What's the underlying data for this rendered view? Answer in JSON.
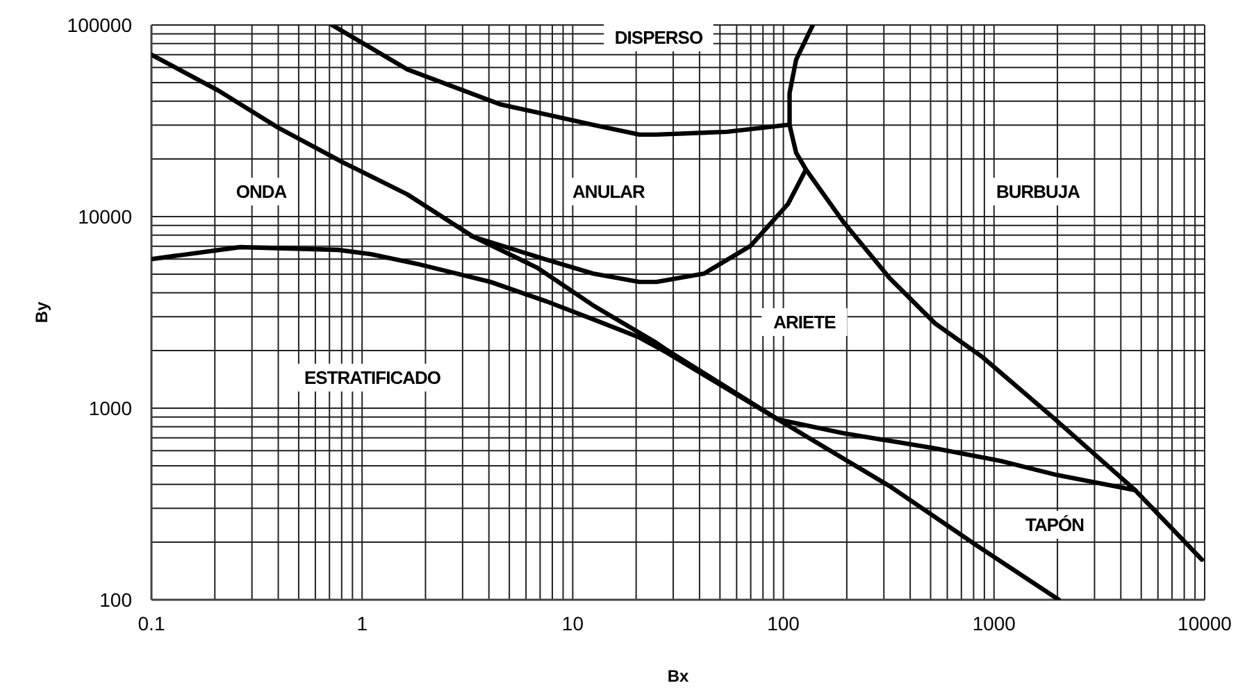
{
  "chart_data": {
    "type": "line",
    "xlabel": "Bx",
    "ylabel": "By",
    "log": "xy",
    "grid": true,
    "marker": "none",
    "line_style": "solid",
    "xlim": [
      0.1,
      10000
    ],
    "ylim": [
      100,
      100000
    ],
    "xticks": [
      0.1,
      1,
      10,
      100,
      1000,
      10000
    ],
    "yticks": [
      100,
      1000,
      10000,
      100000
    ],
    "series": [
      {
        "color": "#000000",
        "x": [
          0.1,
          0.207,
          0.4,
          0.81,
          1.64,
          3.34,
          6.8,
          12.5,
          25,
          28,
          94,
          318,
          828,
          2030
        ],
        "values": [
          70000,
          45600,
          29100,
          19200,
          13060,
          7900,
          5400,
          3440,
          2190,
          2010,
          875,
          393,
          192,
          100
        ]
      },
      {
        "color": "#000000",
        "x": [
          0.1,
          0.264,
          0.77,
          1.1,
          1.82,
          4.07,
          7.5,
          12.5,
          20.7,
          28,
          94,
          193,
          525,
          1070,
          1970,
          4680
        ],
        "values": [
          6000,
          6930,
          6700,
          6370,
          5670,
          4560,
          3610,
          2910,
          2340,
          1950,
          875,
          740,
          617,
          531,
          449,
          373
        ]
      },
      {
        "color": "#000000",
        "x": [
          0.72,
          1.64,
          4.5,
          12.5,
          20.7,
          25,
          54,
          105
        ],
        "values": [
          100000,
          58600,
          38600,
          30100,
          26800,
          26800,
          27700,
          30100
        ]
      },
      {
        "color": "#000000",
        "x": [
          138,
          115,
          107,
          107,
          115,
          128,
          193,
          318,
          525,
          880,
          1880,
          4680,
          9700
        ],
        "values": [
          100000,
          65900,
          44100,
          30100,
          21500,
          17600,
          9350,
          4800,
          2770,
          1850,
          906,
          373,
          162
        ]
      },
      {
        "color": "#000000",
        "x": [
          3.3,
          7.5,
          12.5,
          20.7,
          25,
          42,
          70,
          105,
          128
        ],
        "values": [
          7900,
          5960,
          5040,
          4560,
          4560,
          5040,
          7050,
          11600,
          17600
        ]
      }
    ],
    "annotations": [
      "DISPERSO",
      "ONDA",
      "ANULAR",
      "BURBUJA",
      "ARIETE",
      "ESTRATIFICADO",
      "TAPÓN"
    ]
  }
}
